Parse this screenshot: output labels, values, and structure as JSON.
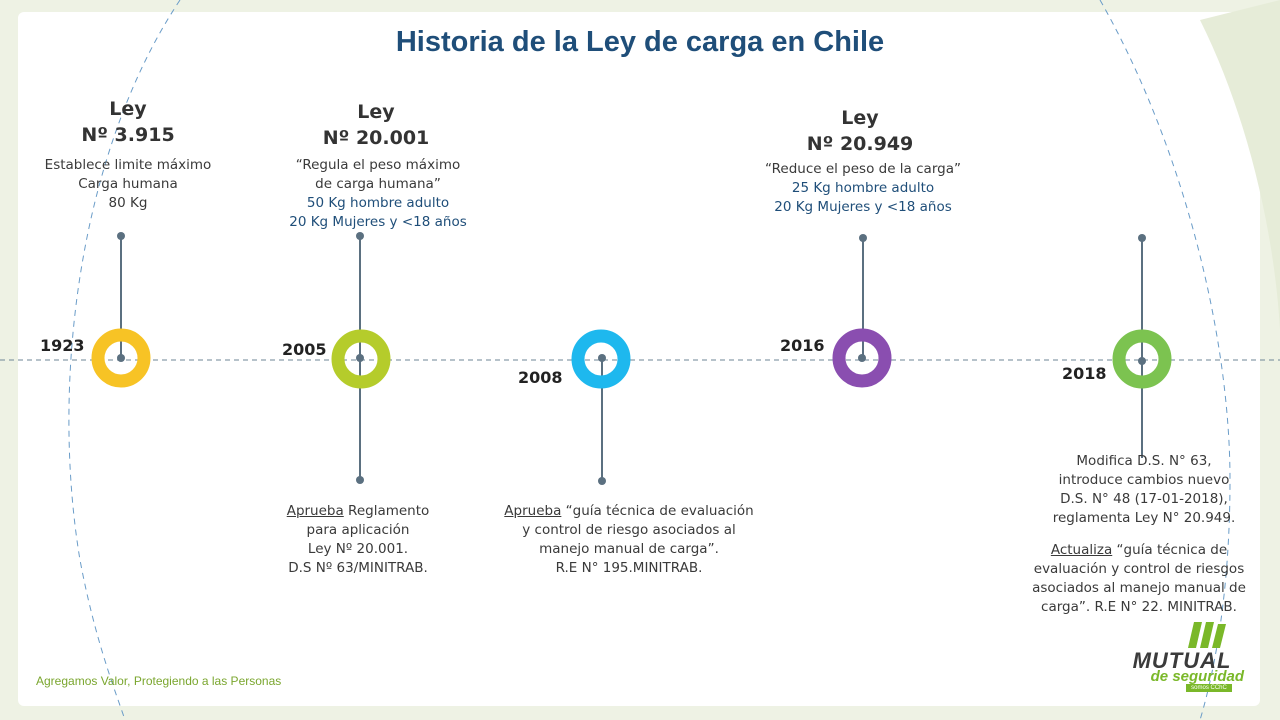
{
  "title": "Historia de la Ley de carga en Chile",
  "milestones": [
    {
      "year": "1923",
      "color": "#f7c325",
      "law_line1": "Ley",
      "law_line2": "Nº 3.915",
      "top_desc": [
        "Establece limite máximo",
        "Carga humana",
        "80 Kg"
      ]
    },
    {
      "year": "2005",
      "color": "#b5cc2b",
      "law_line1": "Ley",
      "law_line2": "Nº 20.001",
      "top_desc": [
        "“Regula el peso máximo",
        "de carga humana”"
      ],
      "top_desc_blue": [
        "50 Kg hombre adulto",
        "20 Kg Mujeres y <18 años"
      ],
      "bottom_underlined": "Aprueba",
      "bottom_desc": [
        " Reglamento",
        "para aplicación",
        "Ley Nº 20.001.",
        "D.S Nº 63/MINITRAB."
      ]
    },
    {
      "year": "2008",
      "color": "#1eb8ee",
      "bottom_underlined": "Aprueba",
      "bottom_desc": [
        " “guía técnica de evaluación",
        "y control de riesgo asociados al",
        "manejo manual de carga”.",
        "R.E N° 195.MINITRAB."
      ]
    },
    {
      "year": "2016",
      "color": "#8a4eb0",
      "law_line1": "Ley",
      "law_line2": "Nº 20.949",
      "top_desc": [
        "“Reduce el peso de la carga”"
      ],
      "top_desc_blue": [
        "25 Kg hombre adulto",
        "20 Kg Mujeres y <18 años"
      ]
    },
    {
      "year": "2018",
      "color": "#7cc350",
      "bottom_desc_a": [
        "Modifica D.S. N° 63,",
        "introduce cambios nuevo",
        "D.S. N° 48 (17-01-2018),",
        "reglamenta Ley N° 20.949."
      ],
      "bottom_underlined": "Actualiza",
      "bottom_desc": [
        " “guía técnica de",
        "evaluación y control de riesgos",
        "asociados al manejo manual de",
        "carga”. R.E N° 22. MINITRAB."
      ]
    }
  ],
  "footer": "Agregamos Valor, Protegiendo a las Personas",
  "logo": {
    "brand": "MUTUAL",
    "sub": "de seguridad",
    "tag": "somos CChC"
  }
}
